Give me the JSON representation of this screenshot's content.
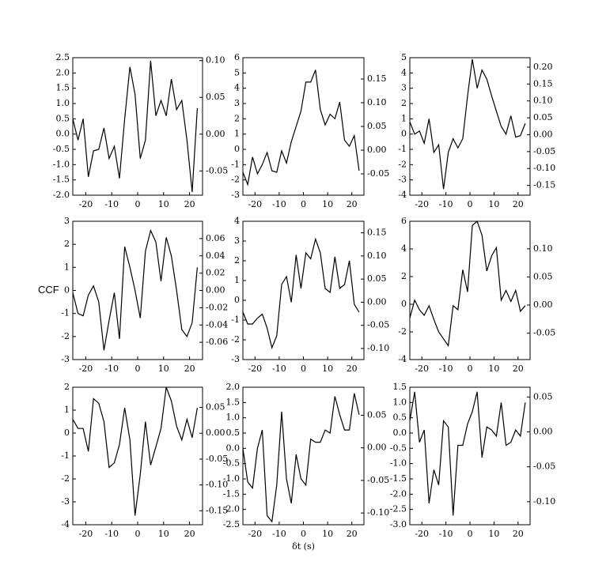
{
  "chart_data": [
    {
      "type": "line",
      "x": [
        -25,
        -23,
        -21,
        -19,
        -17,
        -15,
        -13,
        -11,
        -9,
        -7,
        -5,
        -3,
        -1,
        1,
        3,
        5,
        7,
        9,
        11,
        13,
        15,
        17,
        19,
        21,
        23
      ],
      "series": [
        {
          "color": "#000000",
          "values": [
            0.5,
            -0.2,
            0.5,
            -1.4,
            -0.55,
            -0.5,
            0.2,
            -0.8,
            -0.4,
            -1.45,
            0.5,
            2.2,
            1.3,
            -0.8,
            -0.2,
            2.4,
            0.6,
            1.1,
            0.6,
            1.8,
            0.8,
            1.1,
            -0.2,
            -1.9,
            0.85
          ]
        }
      ],
      "xlim": [
        -25,
        25
      ],
      "xticks": [
        -20,
        -10,
        0,
        10,
        20
      ],
      "ylim": [
        -2,
        2.5
      ],
      "yticks": [
        {
          "value": -2,
          "label": "-2.0"
        },
        -1.5,
        {
          "value": -1,
          "label": "-1.0"
        },
        -0.5,
        {
          "value": 0,
          "label": "0.0"
        },
        0.5,
        {
          "value": 1,
          "label": "1.0"
        },
        1.5,
        {
          "value": 2,
          "label": "2.0"
        },
        2.5
      ],
      "y2lim": [
        -0.083,
        0.104
      ],
      "y2ticks": [
        -0.05,
        {
          "value": 0,
          "label": "0.00"
        },
        0.05,
        {
          "value": 0.1,
          "label": "0.10"
        }
      ]
    },
    {
      "type": "line",
      "x": [
        -25,
        -23,
        -21,
        -19,
        -17,
        -15,
        -13,
        -11,
        -9,
        -7,
        -5,
        -3,
        -1,
        1,
        3,
        5,
        7,
        9,
        11,
        13,
        15,
        17,
        19,
        21,
        23
      ],
      "series": [
        {
          "color": "#000000",
          "values": [
            -1.5,
            -2.3,
            -0.5,
            -1.6,
            -1,
            -0.2,
            -1.4,
            -1.5,
            -0.1,
            -0.9,
            0.5,
            1.5,
            2.5,
            4.4,
            4.4,
            5.2,
            2.6,
            1.6,
            2.3,
            2.0,
            3.1,
            0.6,
            0.2,
            0.9,
            -1.4
          ]
        }
      ],
      "xlim": [
        -25,
        25
      ],
      "xticks": [
        -20,
        -10,
        0,
        10,
        20
      ],
      "ylim": [
        -3,
        6
      ],
      "yticks": [
        -3,
        -2,
        -1,
        0,
        1,
        2,
        3,
        4,
        5,
        6
      ],
      "y2lim": [
        -0.095,
        0.195
      ],
      "y2ticks": [
        -0.05,
        {
          "value": 0,
          "label": "0.00"
        },
        0.05,
        {
          "value": 0.1,
          "label": "0.10"
        },
        0.15
      ]
    },
    {
      "type": "line",
      "x": [
        -25,
        -23,
        -21,
        -19,
        -17,
        -15,
        -13,
        -11,
        -9,
        -7,
        -5,
        -3,
        -1,
        1,
        3,
        5,
        7,
        9,
        11,
        13,
        15,
        17,
        19,
        21,
        23
      ],
      "series": [
        {
          "color": "#000000",
          "values": [
            0.8,
            0,
            0.2,
            -0.6,
            1.0,
            -1.2,
            -0.7,
            -3.6,
            -1.2,
            -0.3,
            -0.9,
            -0.3,
            2.5,
            4.9,
            3.0,
            4.2,
            3.6,
            2.5,
            1.5,
            0.5,
            0,
            1.2,
            -0.2,
            -0.1,
            0.7
          ]
        }
      ],
      "xlim": [
        -25,
        25
      ],
      "xticks": [
        -20,
        -10,
        0,
        10,
        20
      ],
      "ylim": [
        -4,
        5
      ],
      "yticks": [
        -4,
        -3,
        -2,
        -1,
        0,
        1,
        2,
        3,
        4,
        5
      ],
      "y2lim": [
        -0.179,
        0.228
      ],
      "y2ticks": [
        -0.15,
        {
          "value": -0.1,
          "label": "-0.10"
        },
        -0.05,
        {
          "value": 0,
          "label": "0.00"
        },
        0.05,
        {
          "value": 0.1,
          "label": "0.10"
        },
        0.15,
        {
          "value": 0.2,
          "label": "0.20"
        }
      ]
    },
    {
      "type": "line",
      "x": [
        -25,
        -23,
        -21,
        -19,
        -17,
        -15,
        -13,
        -11,
        -9,
        -7,
        -5,
        -3,
        -1,
        1,
        3,
        5,
        7,
        9,
        11,
        13,
        15,
        17,
        19,
        21,
        23
      ],
      "series": [
        {
          "color": "#000000",
          "values": [
            -0.1,
            -1,
            -1.1,
            -0.2,
            0.2,
            -0.5,
            -2.6,
            -1.3,
            -0.1,
            -2.1,
            1.9,
            1.0,
            0,
            -1.2,
            1.7,
            2.6,
            2.1,
            0.4,
            2.3,
            1.5,
            0,
            -1.7,
            -2.0,
            -1.4,
            1.0
          ]
        }
      ],
      "xlim": [
        -25,
        25
      ],
      "xticks": [
        -20,
        -10,
        0,
        10,
        20
      ],
      "ylim": [
        -3,
        3
      ],
      "yticks": [
        -3,
        -2,
        -1,
        0,
        1,
        2,
        3
      ],
      "ylabel": "CCF",
      "y2lim": [
        -0.08,
        0.08
      ],
      "y2ticks": [
        {
          "value": -0.06,
          "label": "-0.06"
        },
        {
          "value": -0.04,
          "label": "-0.04"
        },
        {
          "value": -0.02,
          "label": "-0.02"
        },
        {
          "value": 0,
          "label": "0.00"
        },
        {
          "value": 0.02,
          "label": "0.02"
        },
        {
          "value": 0.04,
          "label": "0.04"
        },
        {
          "value": 0.06,
          "label": "0.06"
        }
      ]
    },
    {
      "type": "line",
      "x": [
        -25,
        -23,
        -21,
        -19,
        -17,
        -15,
        -13,
        -11,
        -9,
        -7,
        -5,
        -3,
        -1,
        1,
        3,
        5,
        7,
        9,
        11,
        13,
        15,
        17,
        19,
        21,
        23
      ],
      "series": [
        {
          "color": "#000000",
          "values": [
            -0.6,
            -1.2,
            -1.2,
            -0.9,
            -0.7,
            -1.4,
            -2.4,
            -1.8,
            0.8,
            1.2,
            -0.1,
            2.3,
            0.6,
            2.4,
            2.1,
            3.1,
            2.4,
            0.6,
            0.4,
            2.2,
            0.6,
            0.8,
            2.0,
            -0.2,
            -0.6
          ]
        }
      ],
      "xlim": [
        -25,
        25
      ],
      "xticks": [
        -20,
        -10,
        0,
        10,
        20
      ],
      "ylim": [
        -3,
        4
      ],
      "yticks": [
        -3,
        -2,
        -1,
        0,
        1,
        2,
        3,
        4
      ],
      "y2lim": [
        -0.124,
        0.175
      ],
      "y2ticks": [
        {
          "value": -0.1,
          "label": "-0.10"
        },
        -0.05,
        {
          "value": 0,
          "label": "0.00"
        },
        0.05,
        {
          "value": 0.1,
          "label": "0.10"
        },
        0.15
      ]
    },
    {
      "type": "line",
      "x": [
        -25,
        -23,
        -21,
        -19,
        -17,
        -15,
        -13,
        -11,
        -9,
        -7,
        -5,
        -3,
        -1,
        1,
        3,
        5,
        7,
        9,
        11,
        13,
        15,
        17,
        19,
        21,
        23
      ],
      "series": [
        {
          "color": "#000000",
          "values": [
            -1,
            0.3,
            -0.4,
            -0.8,
            -0.1,
            -1.1,
            -2.0,
            -2.5,
            -3,
            -0.1,
            -0.4,
            2.5,
            0.9,
            5.7,
            6.0,
            5.0,
            2.4,
            3.5,
            4.1,
            0.3,
            1.0,
            0.2,
            1.0,
            -0.5,
            -0.1
          ]
        }
      ],
      "xlim": [
        -25,
        25
      ],
      "xticks": [
        -20,
        -10,
        0,
        10,
        20
      ],
      "ylim": [
        -4,
        6
      ],
      "yticks": [
        -4,
        -2,
        0,
        2,
        4,
        6
      ],
      "y2lim": [
        -0.097,
        0.149
      ],
      "y2ticks": [
        -0.05,
        {
          "value": 0,
          "label": "0.00"
        },
        0.05,
        {
          "value": 0.1,
          "label": "0.10"
        }
      ]
    },
    {
      "type": "line",
      "x": [
        -25,
        -23,
        -21,
        -19,
        -17,
        -15,
        -13,
        -11,
        -9,
        -7,
        -5,
        -3,
        -1,
        1,
        3,
        5,
        7,
        9,
        11,
        13,
        15,
        17,
        19,
        21,
        23
      ],
      "series": [
        {
          "color": "#000000",
          "values": [
            0.6,
            0.2,
            0.2,
            -0.8,
            1.5,
            1.3,
            0.5,
            -1.5,
            -1.3,
            -0.5,
            1.1,
            -0.3,
            -3.6,
            -1.8,
            0.5,
            -1.4,
            -0.6,
            0.2,
            2.0,
            1.4,
            0.3,
            -0.3,
            0.6,
            -0.2,
            1.1
          ]
        }
      ],
      "xlim": [
        -25,
        25
      ],
      "xticks": [
        -20,
        -10,
        0,
        10,
        20
      ],
      "ylim": [
        -4,
        2
      ],
      "yticks": [
        -4,
        -3,
        -2,
        -1,
        0,
        1,
        2
      ],
      "y2lim": [
        -0.177,
        0.089
      ],
      "y2ticks": [
        -0.15,
        {
          "value": -0.1,
          "label": "-0.10"
        },
        -0.05,
        {
          "value": 0,
          "label": "0.00"
        },
        0.05
      ]
    },
    {
      "type": "line",
      "x": [
        -25,
        -23,
        -21,
        -19,
        -17,
        -15,
        -13,
        -11,
        -9,
        -7,
        -5,
        -3,
        -1,
        1,
        3,
        5,
        7,
        9,
        11,
        13,
        15,
        17,
        19,
        21,
        23
      ],
      "series": [
        {
          "color": "#000000",
          "values": [
            0,
            -1.1,
            -1.3,
            0,
            0.6,
            -2.2,
            -2.4,
            -1.2,
            1.2,
            -1.0,
            -1.8,
            -0.2,
            -1.0,
            -1.2,
            0.3,
            0.2,
            0.2,
            0.6,
            0.5,
            1.7,
            1.1,
            0.6,
            0.6,
            1.8,
            1.1
          ]
        }
      ],
      "xlim": [
        -25,
        25
      ],
      "xticks": [
        -20,
        -10,
        0,
        10,
        20
      ],
      "xlabel": "δt (s)",
      "ylim": [
        -2.5,
        2
      ],
      "yticks": [
        -2.5,
        {
          "value": -2,
          "label": "-2.0"
        },
        -1.5,
        {
          "value": -1,
          "label": "-1.0"
        },
        -0.5,
        {
          "value": 0,
          "label": "0.0"
        },
        0.5,
        {
          "value": 1,
          "label": "1.0"
        },
        1.5,
        {
          "value": 2,
          "label": "2.0"
        }
      ],
      "y2lim": [
        -0.118,
        0.093
      ],
      "y2ticks": [
        {
          "value": -0.1,
          "label": "-0.10"
        },
        -0.05,
        {
          "value": 0,
          "label": "0.00"
        },
        0.05
      ]
    },
    {
      "type": "line",
      "x": [
        -25,
        -23,
        -21,
        -19,
        -17,
        -15,
        -13,
        -11,
        -9,
        -7,
        -5,
        -3,
        -1,
        1,
        3,
        5,
        7,
        9,
        11,
        13,
        15,
        17,
        19,
        21,
        23
      ],
      "series": [
        {
          "color": "#000000",
          "values": [
            0.4,
            1.35,
            -0.3,
            0.1,
            -2.3,
            -1.2,
            -1.7,
            0.4,
            0.2,
            -2.7,
            -0.4,
            -0.4,
            0.3,
            0.7,
            1.35,
            -0.8,
            0.2,
            0.1,
            -0.1,
            1.0,
            -0.4,
            -0.3,
            0.1,
            -0.1,
            1.0
          ]
        }
      ],
      "xlim": [
        -25,
        25
      ],
      "xticks": [
        -20,
        -10,
        0,
        10,
        20
      ],
      "ylim": [
        -3,
        1.5
      ],
      "yticks": [
        {
          "value": -3,
          "label": "-3.0"
        },
        -2.5,
        {
          "value": -2,
          "label": "-2.0"
        },
        -1.5,
        {
          "value": -1,
          "label": "-1.0"
        },
        -0.5,
        {
          "value": 0,
          "label": "0.0"
        },
        0.5,
        {
          "value": 1,
          "label": "1.0"
        },
        1.5
      ],
      "y2lim": [
        -0.133,
        0.064
      ],
      "y2ticks": [
        {
          "value": -0.1,
          "label": "-0.10"
        },
        -0.05,
        {
          "value": 0,
          "label": "0.00"
        },
        0.05
      ]
    }
  ]
}
